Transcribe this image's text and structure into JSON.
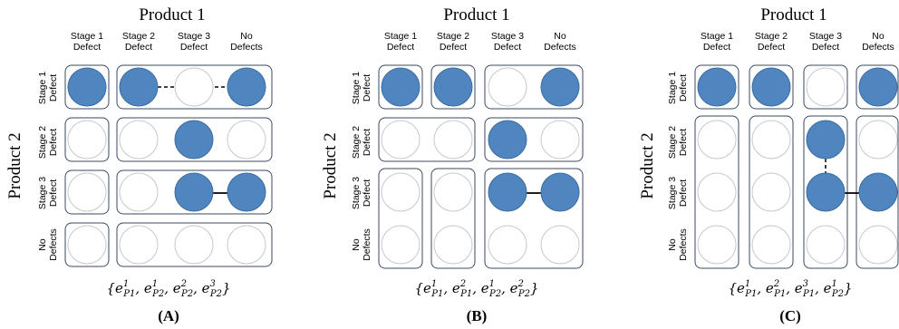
{
  "panels": [
    {
      "label": "(A)",
      "title": "Product 1",
      "side_title": "Product 2",
      "col_headers": [
        [
          "Stage 1",
          "Defect"
        ],
        [
          "Stage 2",
          "Defect"
        ],
        [
          "Stage 3",
          "Defect"
        ],
        [
          "No",
          "Defects"
        ]
      ],
      "row_headers": [
        [
          "Stage 1",
          "Defect"
        ],
        [
          "Stage 2",
          "Defect"
        ],
        [
          "Stage 3",
          "Defect"
        ],
        [
          "No",
          "Defects"
        ]
      ],
      "formula": {
        "terms": [
          {
            "sup": "1",
            "sub": "P1"
          },
          {
            "sup": "1",
            "sub": "P2"
          },
          {
            "sup": "2",
            "sub": "P2"
          },
          {
            "sup": "3",
            "sub": "P2"
          }
        ]
      }
    },
    {
      "label": "(B)",
      "title": "Product 1",
      "side_title": "Product 2",
      "col_headers": [
        [
          "Stage 1",
          "Defect"
        ],
        [
          "Stage 2",
          "Defect"
        ],
        [
          "Stage 3",
          "Defect"
        ],
        [
          "No",
          "Defects"
        ]
      ],
      "row_headers": [
        [
          "Stage 1",
          "Defect"
        ],
        [
          "Stage 2",
          "Defect"
        ],
        [
          "Stage 3",
          "Defect"
        ],
        [
          "No",
          "Defects"
        ]
      ],
      "formula": {
        "terms": [
          {
            "sup": "1",
            "sub": "P1"
          },
          {
            "sup": "2",
            "sub": "P1"
          },
          {
            "sup": "1",
            "sub": "P2"
          },
          {
            "sup": "2",
            "sub": "P2"
          }
        ]
      }
    },
    {
      "label": "(C)",
      "title": "Product 1",
      "side_title": "Product 2",
      "col_headers": [
        [
          "Stage 1",
          "Defect"
        ],
        [
          "Stage 2",
          "Defect"
        ],
        [
          "Stage 3",
          "Defect"
        ],
        [
          "No",
          "Defects"
        ]
      ],
      "row_headers": [
        [
          "Stage 1",
          "Defect"
        ],
        [
          "Stage 2",
          "Defect"
        ],
        [
          "Stage 3",
          "Defect"
        ],
        [
          "No",
          "Defects"
        ]
      ],
      "formula": {
        "terms": [
          {
            "sup": "1",
            "sub": "P1"
          },
          {
            "sup": "2",
            "sub": "P1"
          },
          {
            "sup": "3",
            "sub": "P1"
          },
          {
            "sup": "1",
            "sub": "P2"
          }
        ]
      }
    }
  ],
  "colors": {
    "filled": "#4f86bf",
    "empty_stroke": "#c8c8c8",
    "box_stroke": "#3a4a60"
  }
}
